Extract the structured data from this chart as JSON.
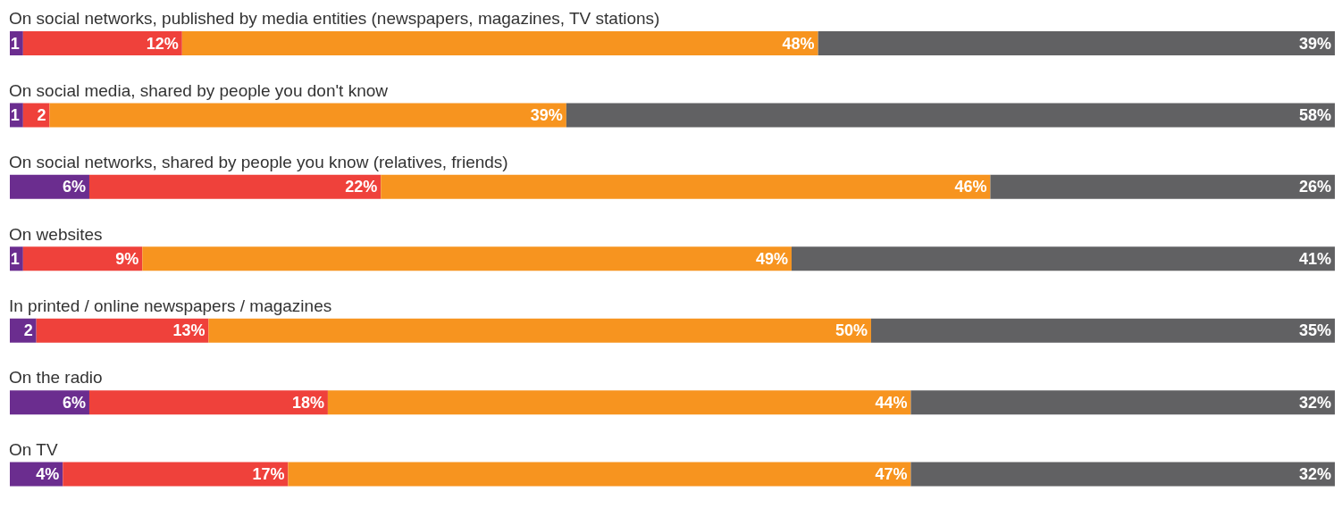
{
  "chart_data": {
    "type": "bar",
    "orientation": "horizontal",
    "stacked": true,
    "categories": [
      "On social networks, published by media entities (newspapers, magazines, TV stations)",
      "On social media, shared by people you don't know",
      "On social networks, shared by people you know (relatives, friends)",
      "On websites",
      "In printed / online newspapers / magazines",
      "On the radio",
      "On TV"
    ],
    "series": [
      {
        "color": "#6b2d8f",
        "values": [
          1,
          1,
          6,
          1,
          2,
          6,
          4
        ],
        "value_labels": [
          "1",
          "1",
          "6%",
          "1",
          "2",
          "6%",
          "4%"
        ]
      },
      {
        "color": "#ef413b",
        "values": [
          12,
          2,
          22,
          9,
          13,
          18,
          17
        ],
        "value_labels": [
          "12%",
          "2",
          "22%",
          "9%",
          "13%",
          "18%",
          "17%"
        ]
      },
      {
        "color": "#f7941f",
        "values": [
          48,
          39,
          46,
          49,
          50,
          44,
          47
        ],
        "value_labels": [
          "48%",
          "39%",
          "46%",
          "49%",
          "50%",
          "44%",
          "47%"
        ]
      },
      {
        "color": "#616163",
        "values": [
          39,
          58,
          26,
          41,
          35,
          32,
          32
        ],
        "value_labels": [
          "39%",
          "58%",
          "26%",
          "41%",
          "35%",
          "32%",
          "32%"
        ]
      }
    ]
  }
}
